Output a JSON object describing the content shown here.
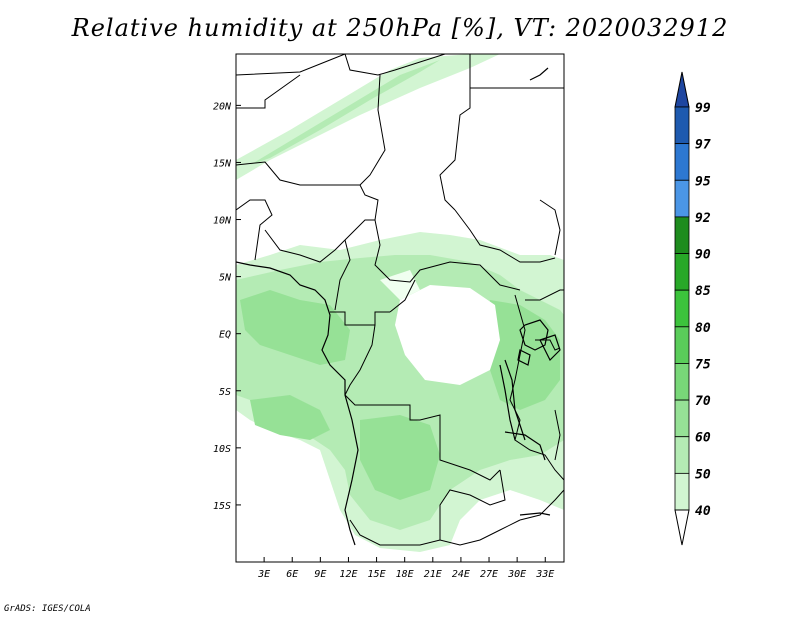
{
  "title": "Relative humidity at 250hPa [%], VT: 2020032912",
  "credit": "GrADS: IGES/COLA",
  "map": {
    "lon_range": [
      0,
      35
    ],
    "lat_range": [
      -20,
      24.5
    ],
    "x_ticks": [
      "3E",
      "6E",
      "9E",
      "12E",
      "15E",
      "18E",
      "21E",
      "24E",
      "27E",
      "30E",
      "33E"
    ],
    "y_ticks": [
      "20N",
      "15N",
      "10N",
      "5N",
      "EQ",
      "5S",
      "10S",
      "15S"
    ]
  },
  "colorbar": {
    "labels": [
      "40",
      "50",
      "60",
      "70",
      "75",
      "80",
      "85",
      "90",
      "92",
      "95",
      "97",
      "99"
    ],
    "colors": [
      "#f0fff0",
      "#d2f5d2",
      "#b4ebb4",
      "#96e196",
      "#78d778",
      "#5acd5a",
      "#3cc33c",
      "#28a828",
      "#1e8c1e",
      "#4b96e6",
      "#2d78d2",
      "#1e5aaf",
      "#1e46a0"
    ]
  }
}
